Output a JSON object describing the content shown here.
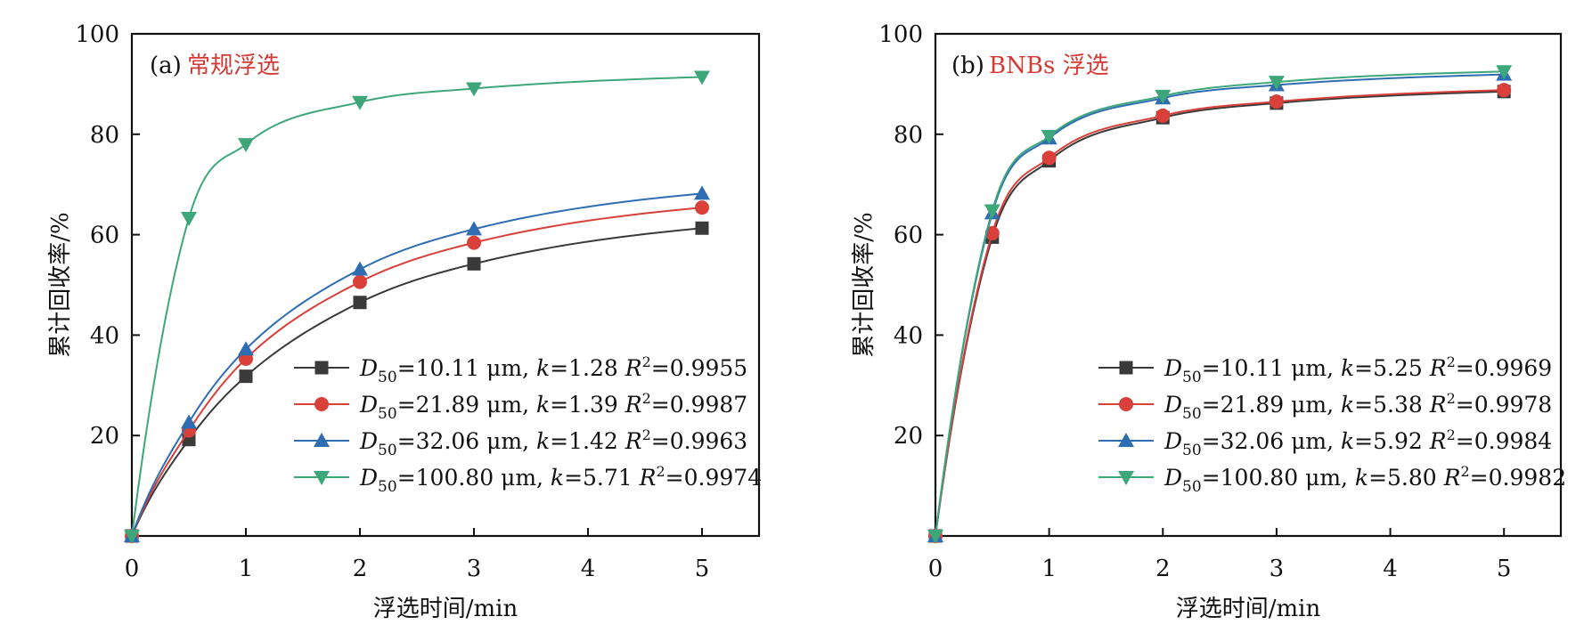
{
  "chart_data": [
    {
      "type": "line",
      "panel_tag": "(a)",
      "title": "常规浮选",
      "xlabel": "浮选时间/min",
      "ylabel": "累计回收率/%",
      "xlim": [
        0,
        5.5
      ],
      "ylim": [
        0,
        100
      ],
      "xticks": [
        "0",
        "1",
        "2",
        "3",
        "4",
        "5"
      ],
      "yticks": [
        "20",
        "40",
        "60",
        "80",
        "100"
      ],
      "legend_position": "bottom-right",
      "series": [
        {
          "name": "D50=10.11 μm, k=1.28 R2=0.9955",
          "d50": "10.11",
          "k": "1.28",
          "r2": "0.9955",
          "color": "#3a3a3a",
          "marker": "square",
          "x": [
            0,
            0.5,
            1,
            2,
            3,
            5
          ],
          "y": [
            0,
            19.2,
            31.8,
            46.5,
            54.2,
            61.3
          ]
        },
        {
          "name": "D50=21.89 μm, k=1.39 R2=0.9987",
          "d50": "21.89",
          "k": "1.39",
          "r2": "0.9987",
          "color": "#d9403a",
          "marker": "circle",
          "x": [
            0,
            0.5,
            1,
            2,
            3,
            5
          ],
          "y": [
            0,
            21.0,
            35.3,
            50.6,
            58.4,
            65.4
          ]
        },
        {
          "name": "D50=32.06 μm, k=1.42 R2=0.9963",
          "d50": "32.06",
          "k": "1.42",
          "r2": "0.9963",
          "color": "#2f6db3",
          "marker": "triangle-up",
          "x": [
            0,
            0.5,
            1,
            2,
            3,
            5
          ],
          "y": [
            0,
            22.6,
            37.2,
            53.1,
            61.1,
            68.2
          ]
        },
        {
          "name": "D50=100.80 μm, k=5.71 R2=0.9974",
          "d50": "100.80",
          "k": "5.71",
          "r2": "0.9974",
          "color": "#3da77a",
          "marker": "triangle-down",
          "x": [
            0,
            0.5,
            1,
            2,
            3,
            5
          ],
          "y": [
            0,
            63.3,
            78.0,
            86.4,
            89.1,
            91.4
          ]
        }
      ]
    },
    {
      "type": "line",
      "panel_tag": "(b)",
      "title": "BNBs 浮选",
      "xlabel": "浮选时间/min",
      "ylabel": "累计回收率/%",
      "xlim": [
        0,
        5.5
      ],
      "ylim": [
        0,
        100
      ],
      "xticks": [
        "0",
        "1",
        "2",
        "3",
        "4",
        "5"
      ],
      "yticks": [
        "20",
        "40",
        "60",
        "80",
        "100"
      ],
      "legend_position": "bottom-right",
      "series": [
        {
          "name": "D50=10.11 μm, k=5.25 R2=0.9969",
          "d50": "10.11",
          "k": "5.25",
          "r2": "0.9969",
          "color": "#3a3a3a",
          "marker": "square",
          "x": [
            0,
            0.5,
            1,
            2,
            3,
            5
          ],
          "y": [
            0,
            59.5,
            74.7,
            83.3,
            86.2,
            88.5
          ]
        },
        {
          "name": "D50=21.89 μm, k=5.38 R2=0.9978",
          "d50": "21.89",
          "k": "5.38",
          "r2": "0.9978",
          "color": "#d9403a",
          "marker": "circle",
          "x": [
            0,
            0.5,
            1,
            2,
            3,
            5
          ],
          "y": [
            0,
            60.3,
            75.3,
            83.7,
            86.5,
            88.8
          ]
        },
        {
          "name": "D50=32.06 μm, k=5.92 R2=0.9984",
          "d50": "32.06",
          "k": "5.92",
          "r2": "0.9984",
          "color": "#2f6db3",
          "marker": "triangle-up",
          "x": [
            0,
            0.5,
            1,
            2,
            3,
            5
          ],
          "y": [
            0,
            64.3,
            79.2,
            87.2,
            89.8,
            91.9
          ]
        },
        {
          "name": "D50=100.80 μm, k=5.80 R2=0.9982",
          "d50": "100.80",
          "k": "5.80",
          "r2": "0.9982",
          "color": "#3da77a",
          "marker": "triangle-down",
          "x": [
            0,
            0.5,
            1,
            2,
            3,
            5
          ],
          "y": [
            0,
            64.8,
            79.6,
            87.6,
            90.4,
            92.5
          ]
        }
      ]
    }
  ]
}
